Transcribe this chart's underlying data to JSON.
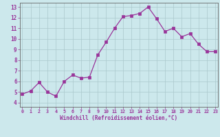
{
  "x": [
    0,
    1,
    2,
    3,
    4,
    5,
    6,
    7,
    8,
    9,
    10,
    11,
    12,
    13,
    14,
    15,
    16,
    17,
    18,
    19,
    20,
    21,
    22,
    23
  ],
  "y": [
    4.8,
    5.1,
    5.9,
    5.0,
    4.6,
    6.0,
    6.6,
    6.3,
    6.4,
    8.5,
    9.7,
    11.0,
    12.1,
    12.2,
    12.4,
    13.0,
    11.9,
    10.7,
    11.0,
    10.2,
    10.5,
    9.5,
    8.8,
    8.8
  ],
  "xlabel": "Windchill (Refroidissement éolien,°C)",
  "yticks": [
    4,
    5,
    6,
    7,
    8,
    9,
    10,
    11,
    12,
    13
  ],
  "xticks": [
    0,
    1,
    2,
    3,
    4,
    5,
    6,
    7,
    8,
    9,
    10,
    11,
    12,
    13,
    14,
    15,
    16,
    17,
    18,
    19,
    20,
    21,
    22,
    23
  ],
  "line_color": "#993399",
  "marker_color": "#993399",
  "bg_color": "#cce8ec",
  "grid_color": "#aac8cc",
  "axis_color": "#666666",
  "tick_color": "#993399",
  "label_color": "#993399"
}
